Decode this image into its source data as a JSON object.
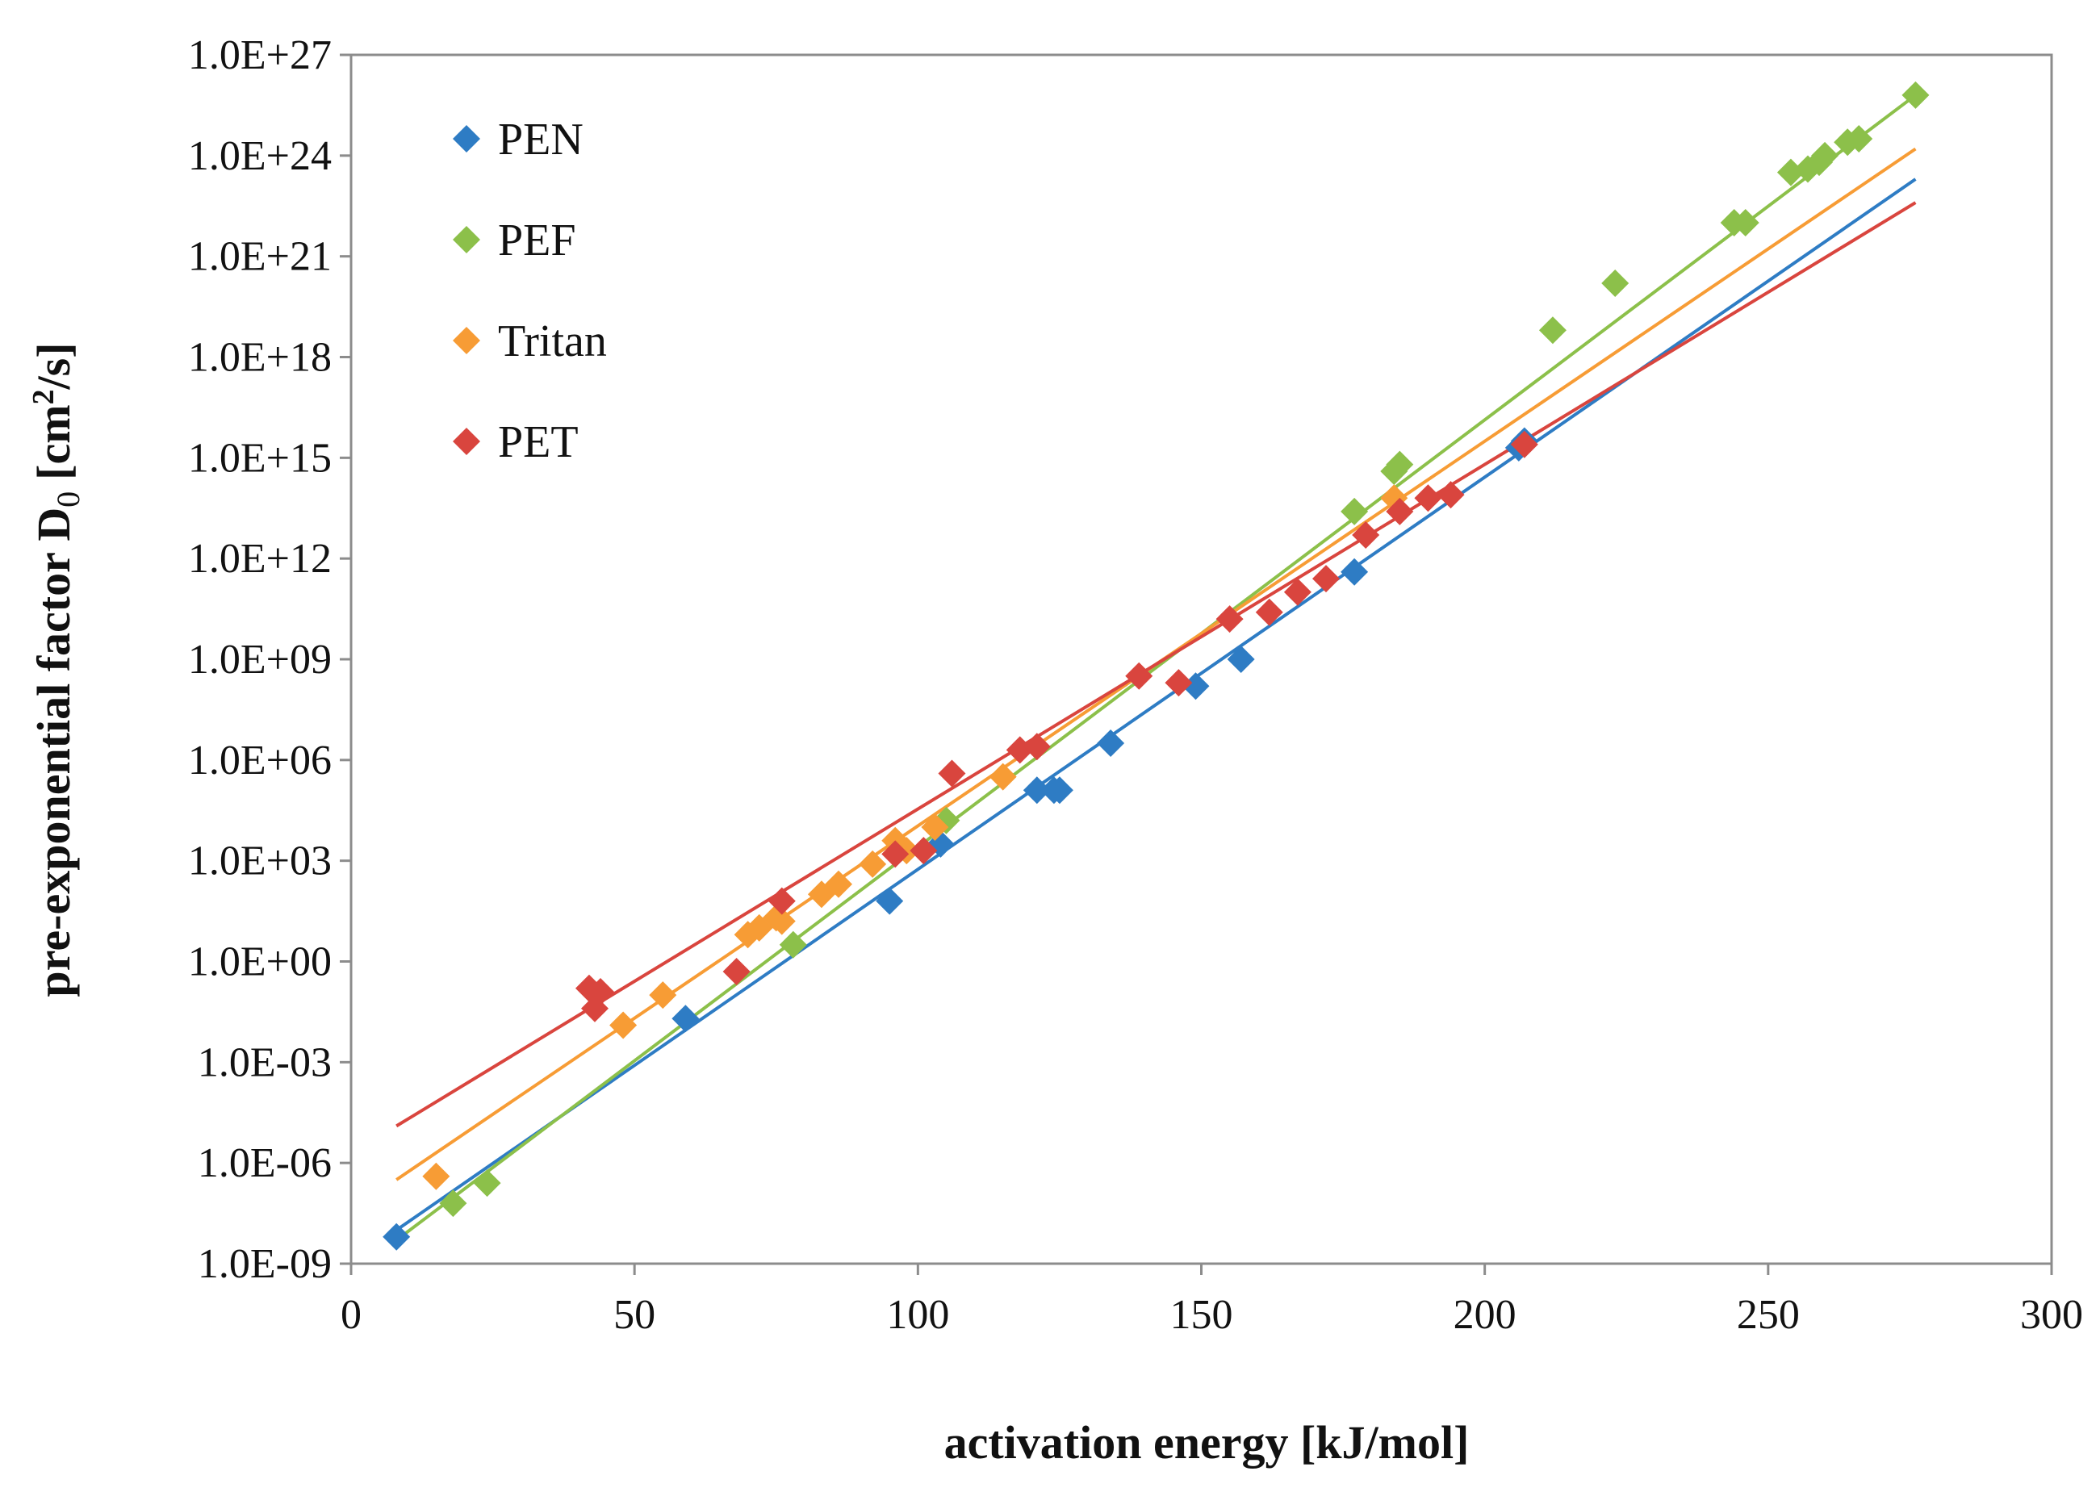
{
  "chart_data": {
    "type": "scatter",
    "title": "",
    "xlabel": "activation energy [kJ/mol]",
    "ylabel": "pre-exponential factor D",
    "ylabel_subscript": "0",
    "ylabel_units_open": "[cm",
    "ylabel_units_sup": "2",
    "ylabel_units_close": "/s]",
    "xlim": [
      0,
      300
    ],
    "x_ticks": [
      0,
      50,
      100,
      150,
      200,
      250,
      300
    ],
    "x_tick_labels": [
      "0",
      "50",
      "100",
      "150",
      "200",
      "250",
      "300"
    ],
    "ylim_log10": [
      -9,
      27
    ],
    "y_scale": "log",
    "y_tick_exponents": [
      -9,
      -6,
      -3,
      0,
      3,
      6,
      9,
      12,
      15,
      18,
      21,
      24,
      27
    ],
    "y_tick_labels": [
      "1.0E-09",
      "1.0E-06",
      "1.0E-03",
      "1.0E+00",
      "1.0E+03",
      "1.0E+06",
      "1.0E+09",
      "1.0E+12",
      "1.0E+15",
      "1.0E+18",
      "1.0E+21",
      "1.0E+24",
      "1.0E+27"
    ],
    "legend_position": "top-left",
    "grid": false,
    "series": [
      {
        "name": "PEN",
        "color": "#2e7cc4",
        "points_log10": [
          [
            8,
            -8.2
          ],
          [
            59,
            -1.7
          ],
          [
            95,
            1.8
          ],
          [
            104,
            3.5
          ],
          [
            121,
            5.1
          ],
          [
            124,
            5.1
          ],
          [
            125,
            5.1
          ],
          [
            134,
            6.5
          ],
          [
            149,
            8.2
          ],
          [
            157,
            9.0
          ],
          [
            177,
            11.6
          ],
          [
            206,
            15.3
          ],
          [
            207,
            15.5
          ]
        ],
        "trend_log10": [
          [
            8,
            -8.0
          ],
          [
            276,
            23.3
          ]
        ]
      },
      {
        "name": "PEF",
        "color": "#8cc04a",
        "points_log10": [
          [
            18,
            -7.2
          ],
          [
            24,
            -6.6
          ],
          [
            78,
            0.5
          ],
          [
            105,
            4.2
          ],
          [
            177,
            13.4
          ],
          [
            184,
            14.6
          ],
          [
            185,
            14.8
          ],
          [
            212,
            18.8
          ],
          [
            223,
            20.2
          ],
          [
            244,
            22.0
          ],
          [
            246,
            22.0
          ],
          [
            254,
            23.5
          ],
          [
            257,
            23.6
          ],
          [
            259,
            23.8
          ],
          [
            260,
            24.0
          ],
          [
            264,
            24.4
          ],
          [
            266,
            24.5
          ],
          [
            276,
            25.8
          ]
        ],
        "trend_log10": [
          [
            8,
            -8.3
          ],
          [
            276,
            25.8
          ]
        ]
      },
      {
        "name": "Tritan",
        "color": "#f79c35",
        "points_log10": [
          [
            15,
            -6.4
          ],
          [
            48,
            -1.9
          ],
          [
            55,
            -1.0
          ],
          [
            70,
            0.8
          ],
          [
            72,
            1.0
          ],
          [
            75,
            1.3
          ],
          [
            76,
            1.2
          ],
          [
            83,
            2.0
          ],
          [
            86,
            2.3
          ],
          [
            92,
            2.9
          ],
          [
            96,
            3.6
          ],
          [
            98,
            3.3
          ],
          [
            103,
            4.0
          ],
          [
            115,
            5.5
          ],
          [
            184,
            13.8
          ]
        ],
        "trend_log10": [
          [
            8,
            -6.5
          ],
          [
            276,
            24.2
          ]
        ]
      },
      {
        "name": "PET",
        "color": "#d9453e",
        "points_log10": [
          [
            42,
            -0.8
          ],
          [
            43,
            -1.4
          ],
          [
            44,
            -0.9
          ],
          [
            68,
            -0.3
          ],
          [
            76,
            1.8
          ],
          [
            96,
            3.2
          ],
          [
            101,
            3.3
          ],
          [
            106,
            5.6
          ],
          [
            118,
            6.3
          ],
          [
            121,
            6.4
          ],
          [
            139,
            8.5
          ],
          [
            146,
            8.3
          ],
          [
            155,
            10.2
          ],
          [
            162,
            10.4
          ],
          [
            167,
            11.0
          ],
          [
            172,
            11.4
          ],
          [
            179,
            12.7
          ],
          [
            185,
            13.4
          ],
          [
            190,
            13.8
          ],
          [
            194,
            13.9
          ],
          [
            207,
            15.4
          ]
        ],
        "trend_log10": [
          [
            8,
            -4.9
          ],
          [
            276,
            22.6
          ]
        ]
      }
    ]
  }
}
